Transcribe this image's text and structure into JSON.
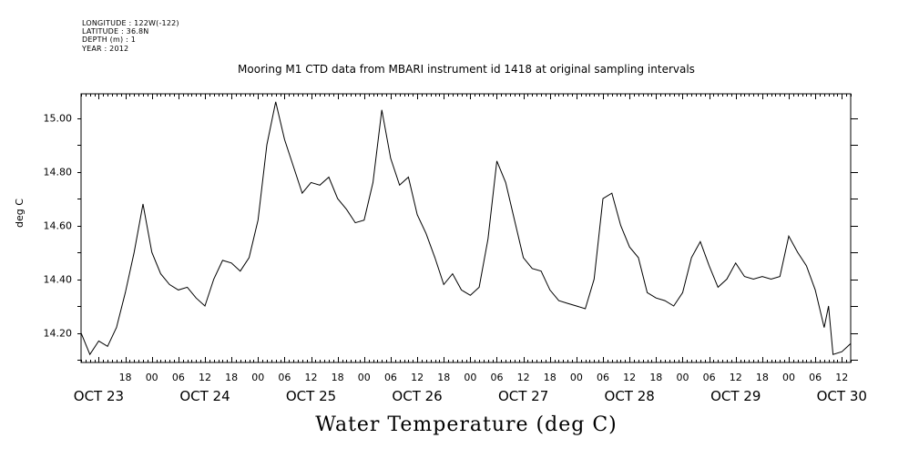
{
  "header": {
    "longitude": "LONGITUDE : 122W(-122)",
    "latitude": "LATITUDE : 36.8N",
    "depth": "DEPTH (m) : 1",
    "year": "YEAR : 2012"
  },
  "chart_data": {
    "type": "line",
    "title": "Mooring M1 CTD data from MBARI instrument id 1418 at original sampling intervals",
    "xlabel": "Water Temperature (deg C)",
    "ylabel": "deg C",
    "xlim": [
      "2012-10-23 08:00",
      "2012-10-30 14:00"
    ],
    "ylim": [
      14.09,
      15.09
    ],
    "y_ticks": [
      "14.20",
      "14.40",
      "14.60",
      "14.80",
      "15.00"
    ],
    "x_hour_ticks": [
      "18",
      "00",
      "06",
      "12",
      "18",
      "00",
      "06",
      "12",
      "18",
      "00",
      "06",
      "12",
      "18",
      "00",
      "06",
      "12",
      "18",
      "00",
      "06",
      "12",
      "18",
      "00",
      "06",
      "12",
      "18",
      "00",
      "06",
      "12"
    ],
    "x_day_labels": [
      "OCT 23",
      "OCT 24",
      "OCT 25",
      "OCT 26",
      "OCT 27",
      "OCT 28",
      "OCT 29",
      "OCT 30"
    ],
    "grid": false,
    "series": [
      {
        "values": [
          [
            "2012-10-23 08:00",
            14.2
          ],
          [
            "2012-10-23 10:00",
            14.12
          ],
          [
            "2012-10-23 12:00",
            14.17
          ],
          [
            "2012-10-23 14:00",
            14.15
          ],
          [
            "2012-10-23 16:00",
            14.22
          ],
          [
            "2012-10-23 18:00",
            14.35
          ],
          [
            "2012-10-23 20:00",
            14.5
          ],
          [
            "2012-10-23 22:00",
            14.68
          ],
          [
            "2012-10-24 00:00",
            14.5
          ],
          [
            "2012-10-24 02:00",
            14.42
          ],
          [
            "2012-10-24 04:00",
            14.38
          ],
          [
            "2012-10-24 06:00",
            14.36
          ],
          [
            "2012-10-24 08:00",
            14.37
          ],
          [
            "2012-10-24 10:00",
            14.33
          ],
          [
            "2012-10-24 12:00",
            14.3
          ],
          [
            "2012-10-24 14:00",
            14.4
          ],
          [
            "2012-10-24 16:00",
            14.47
          ],
          [
            "2012-10-24 18:00",
            14.46
          ],
          [
            "2012-10-24 20:00",
            14.43
          ],
          [
            "2012-10-24 22:00",
            14.48
          ],
          [
            "2012-10-25 00:00",
            14.62
          ],
          [
            "2012-10-25 02:00",
            14.9
          ],
          [
            "2012-10-25 04:00",
            15.06
          ],
          [
            "2012-10-25 06:00",
            14.92
          ],
          [
            "2012-10-25 08:00",
            14.82
          ],
          [
            "2012-10-25 10:00",
            14.72
          ],
          [
            "2012-10-25 12:00",
            14.76
          ],
          [
            "2012-10-25 14:00",
            14.75
          ],
          [
            "2012-10-25 16:00",
            14.78
          ],
          [
            "2012-10-25 18:00",
            14.7
          ],
          [
            "2012-10-25 20:00",
            14.66
          ],
          [
            "2012-10-25 22:00",
            14.61
          ],
          [
            "2012-10-26 00:00",
            14.62
          ],
          [
            "2012-10-26 02:00",
            14.76
          ],
          [
            "2012-10-26 04:00",
            15.03
          ],
          [
            "2012-10-26 06:00",
            14.85
          ],
          [
            "2012-10-26 08:00",
            14.75
          ],
          [
            "2012-10-26 10:00",
            14.78
          ],
          [
            "2012-10-26 12:00",
            14.64
          ],
          [
            "2012-10-26 14:00",
            14.57
          ],
          [
            "2012-10-26 16:00",
            14.48
          ],
          [
            "2012-10-26 18:00",
            14.38
          ],
          [
            "2012-10-26 20:00",
            14.42
          ],
          [
            "2012-10-26 22:00",
            14.36
          ],
          [
            "2012-10-27 00:00",
            14.34
          ],
          [
            "2012-10-27 02:00",
            14.37
          ],
          [
            "2012-10-27 04:00",
            14.55
          ],
          [
            "2012-10-27 06:00",
            14.84
          ],
          [
            "2012-10-27 08:00",
            14.76
          ],
          [
            "2012-10-27 10:00",
            14.62
          ],
          [
            "2012-10-27 12:00",
            14.48
          ],
          [
            "2012-10-27 14:00",
            14.44
          ],
          [
            "2012-10-27 16:00",
            14.43
          ],
          [
            "2012-10-27 18:00",
            14.36
          ],
          [
            "2012-10-27 20:00",
            14.32
          ],
          [
            "2012-10-27 22:00",
            14.31
          ],
          [
            "2012-10-28 00:00",
            14.3
          ],
          [
            "2012-10-28 02:00",
            14.29
          ],
          [
            "2012-10-28 04:00",
            14.4
          ],
          [
            "2012-10-28 06:00",
            14.7
          ],
          [
            "2012-10-28 08:00",
            14.72
          ],
          [
            "2012-10-28 10:00",
            14.6
          ],
          [
            "2012-10-28 12:00",
            14.52
          ],
          [
            "2012-10-28 14:00",
            14.48
          ],
          [
            "2012-10-28 16:00",
            14.35
          ],
          [
            "2012-10-28 18:00",
            14.33
          ],
          [
            "2012-10-28 20:00",
            14.32
          ],
          [
            "2012-10-28 22:00",
            14.3
          ],
          [
            "2012-10-29 00:00",
            14.35
          ],
          [
            "2012-10-29 02:00",
            14.48
          ],
          [
            "2012-10-29 04:00",
            14.54
          ],
          [
            "2012-10-29 06:00",
            14.45
          ],
          [
            "2012-10-29 08:00",
            14.37
          ],
          [
            "2012-10-29 10:00",
            14.4
          ],
          [
            "2012-10-29 12:00",
            14.46
          ],
          [
            "2012-10-29 14:00",
            14.41
          ],
          [
            "2012-10-29 16:00",
            14.4
          ],
          [
            "2012-10-29 18:00",
            14.41
          ],
          [
            "2012-10-29 20:00",
            14.4
          ],
          [
            "2012-10-29 22:00",
            14.41
          ],
          [
            "2012-10-30 00:00",
            14.56
          ],
          [
            "2012-10-30 02:00",
            14.5
          ],
          [
            "2012-10-30 04:00",
            14.45
          ],
          [
            "2012-10-30 06:00",
            14.36
          ],
          [
            "2012-10-30 08:00",
            14.22
          ],
          [
            "2012-10-30 09:00",
            14.3
          ],
          [
            "2012-10-30 10:00",
            14.12
          ],
          [
            "2012-10-30 12:00",
            14.13
          ],
          [
            "2012-10-30 14:00",
            14.16
          ]
        ]
      }
    ]
  }
}
